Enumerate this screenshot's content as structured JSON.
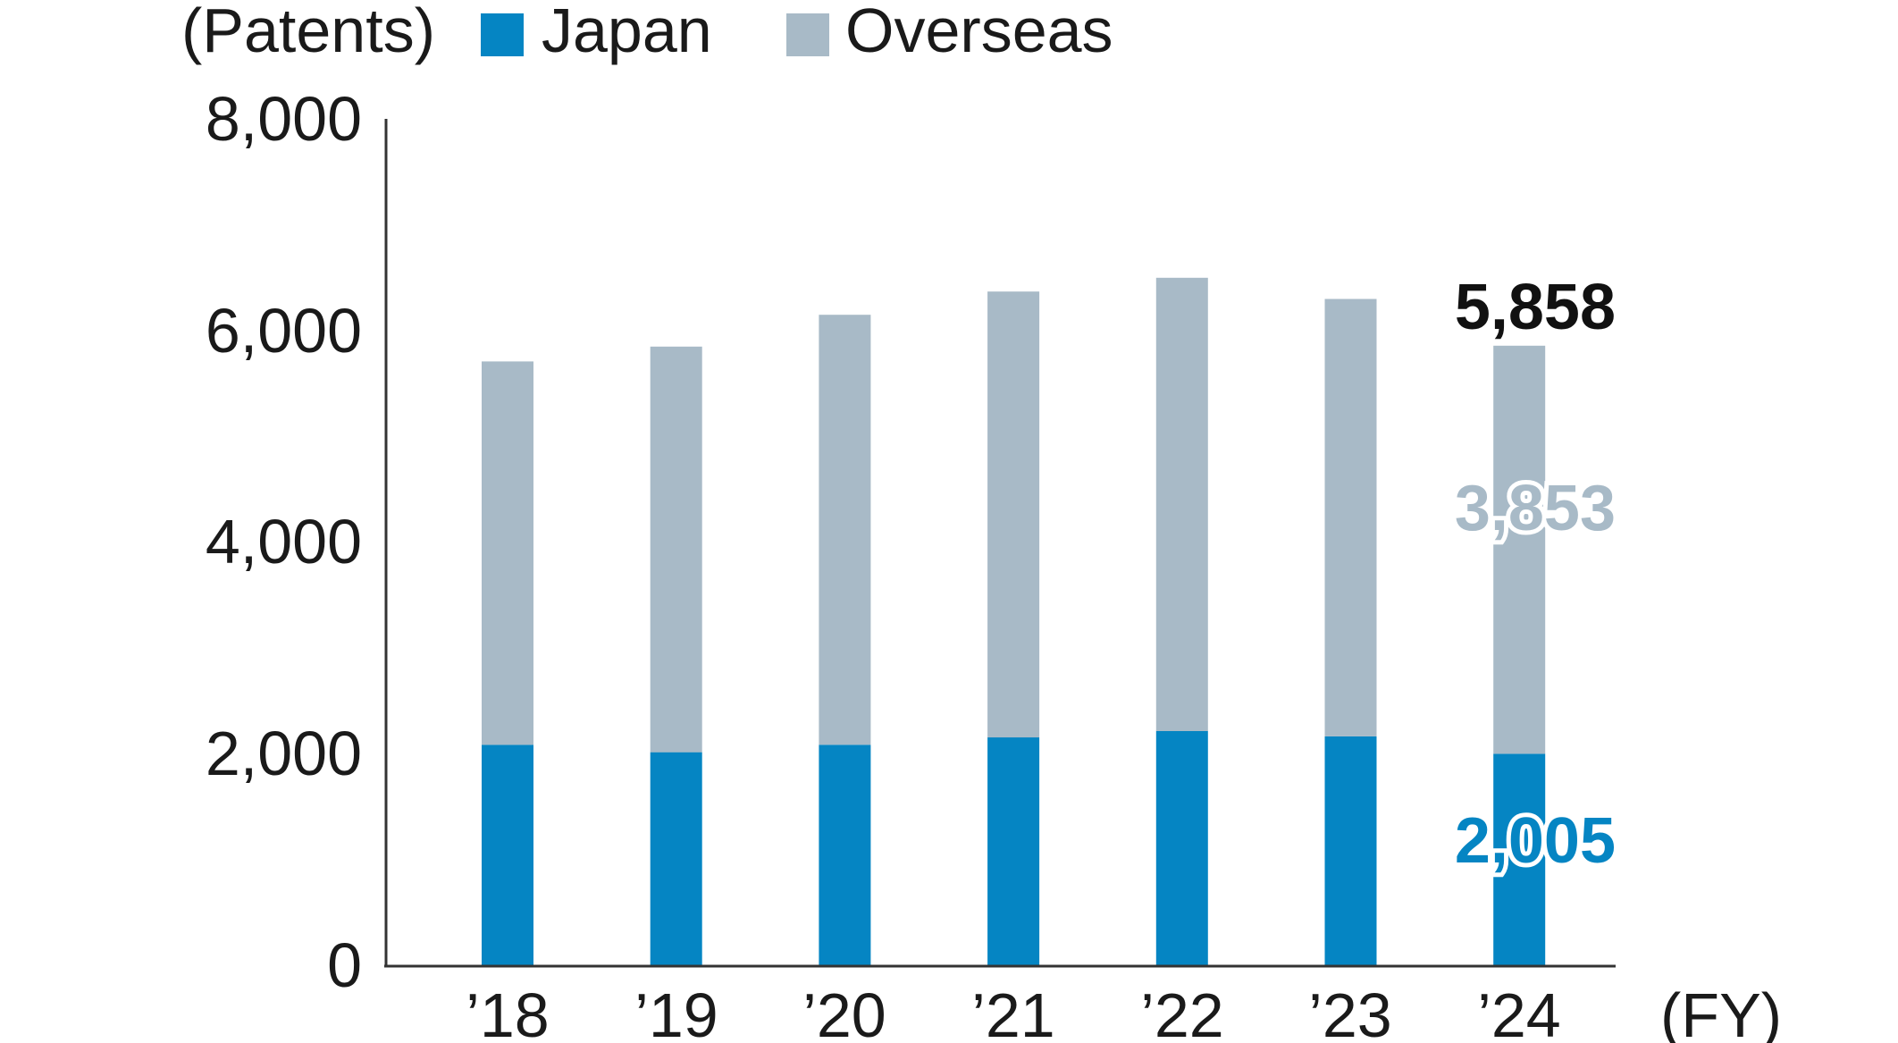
{
  "colors": {
    "japan": "#0585c3",
    "overseas": "#a8bac7",
    "axis": "#333333",
    "text": "#1a1a1a"
  },
  "chart_data": {
    "type": "bar",
    "stacked": true,
    "y_unit_label": "(Patents)",
    "x_unit_label": "(FY)",
    "categories": [
      "’18",
      "’19",
      "’20",
      "’21",
      "’22",
      "’23",
      "’24"
    ],
    "series": [
      {
        "name": "Japan",
        "color": "#0585c3",
        "values": [
          2090,
          2020,
          2090,
          2160,
          2220,
          2170,
          2005
        ]
      },
      {
        "name": "Overseas",
        "color": "#a8bac7",
        "values": [
          3620,
          3830,
          4060,
          4210,
          4280,
          4130,
          3853
        ]
      }
    ],
    "totals": [
      5710,
      5850,
      6150,
      6370,
      6500,
      6300,
      5858
    ],
    "ylim": [
      0,
      8000
    ],
    "yticks": [
      "0",
      "2,000",
      "4,000",
      "6,000",
      "8,000"
    ],
    "ytick_values": [
      0,
      2000,
      4000,
      6000,
      8000
    ],
    "annotations": {
      "total_last": "5,858",
      "overseas_last": "3,853",
      "japan_last": "2,005"
    },
    "legend_position": "top-left",
    "grid": false
  }
}
